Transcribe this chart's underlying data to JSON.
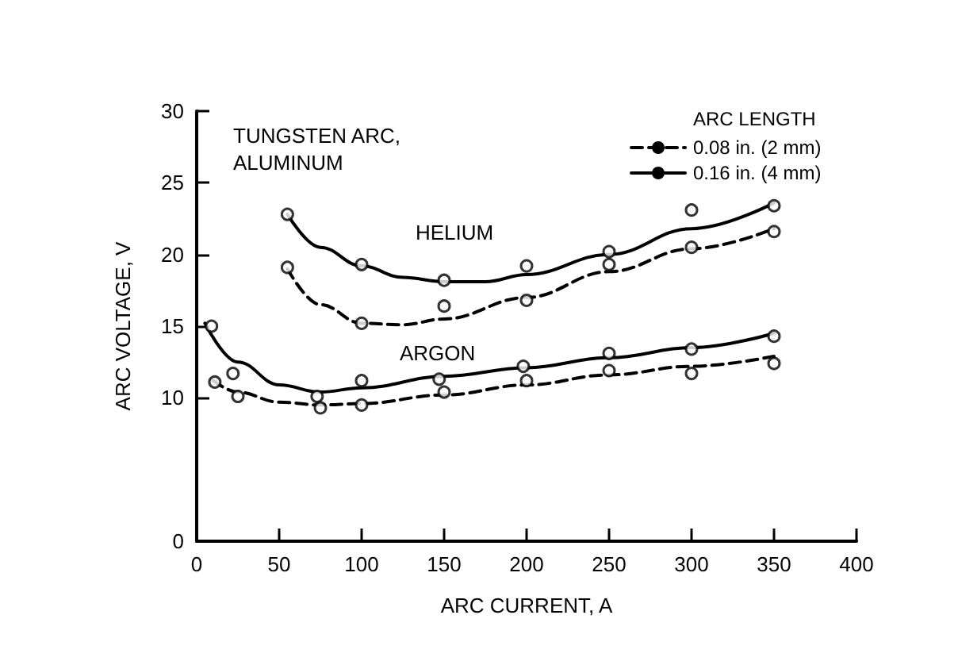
{
  "chart_data": {
    "type": "line",
    "title": "TUNGSTEN ARC, ALUMINUM",
    "xlabel": "ARC CURRENT, A",
    "ylabel": "ARC VOLTAGE, V",
    "legend_title": "ARC LENGTH",
    "legend": "top right",
    "xlim": [
      0,
      400
    ],
    "xticks": [
      0,
      50,
      100,
      150,
      200,
      250,
      300,
      350,
      400
    ],
    "ylim": [
      0,
      30
    ],
    "yticks": [
      0,
      10,
      15,
      20,
      25,
      30
    ],
    "annotations": [
      "HELIUM",
      "ARGON"
    ],
    "series": [
      {
        "name": "0.08 in. (2 mm)",
        "line_style": "dashed",
        "marker": "none",
        "color": "#000000",
        "x": [
          55,
          75,
          100,
          125,
          150,
          200,
          250,
          300,
          350
        ],
        "values": [
          19.0,
          16.5,
          15.2,
          15.1,
          15.5,
          17.0,
          18.8,
          20.4,
          21.8
        ]
      },
      {
        "name": "0.16 in. (4 mm)",
        "line_style": "solid",
        "marker": "none",
        "color": "#000000",
        "x": [
          55,
          75,
          100,
          125,
          150,
          175,
          200,
          250,
          300,
          350
        ],
        "values": [
          22.8,
          20.5,
          19.2,
          18.4,
          18.1,
          18.1,
          18.6,
          20.0,
          21.8,
          23.6
        ]
      },
      {
        "line_style": "dashed",
        "marker": "none",
        "color": "#000000",
        "x": [
          10,
          25,
          50,
          75,
          100,
          150,
          200,
          250,
          300,
          350
        ],
        "values": [
          11.2,
          10.4,
          9.7,
          9.5,
          9.6,
          10.2,
          10.9,
          11.6,
          12.2,
          12.9
        ]
      },
      {
        "line_style": "solid",
        "marker": "none",
        "color": "#000000",
        "x": [
          5,
          25,
          50,
          75,
          100,
          150,
          200,
          250,
          300,
          350
        ],
        "values": [
          15.2,
          12.5,
          10.9,
          10.4,
          10.7,
          11.5,
          12.1,
          12.8,
          13.5,
          14.5
        ]
      },
      {
        "type": "scatter",
        "marker": "circle",
        "color": "#000000",
        "x": [
          55,
          100,
          150,
          200,
          250,
          300,
          350
        ],
        "values": [
          22.8,
          19.3,
          18.2,
          19.2,
          20.2,
          23.1,
          23.4
        ]
      },
      {
        "type": "scatter",
        "marker": "circle",
        "color": "#000000",
        "x": [
          55,
          100,
          150,
          200,
          250,
          300,
          350
        ],
        "values": [
          19.1,
          15.2,
          16.4,
          16.8,
          19.3,
          20.5,
          21.6
        ]
      },
      {
        "type": "scatter",
        "marker": "circle",
        "color": "#000000",
        "x": [
          9,
          22,
          73,
          100,
          147,
          198,
          250,
          300,
          350
        ],
        "values": [
          15.0,
          11.7,
          10.1,
          11.2,
          11.3,
          12.2,
          13.1,
          13.4,
          14.3
        ]
      },
      {
        "type": "scatter",
        "marker": "circle",
        "color": "#000000",
        "x": [
          11,
          25,
          75,
          100,
          150,
          200,
          250,
          300,
          350
        ],
        "values": [
          11.1,
          10.1,
          9.3,
          9.5,
          10.4,
          11.2,
          11.9,
          11.7,
          12.4
        ]
      }
    ]
  }
}
